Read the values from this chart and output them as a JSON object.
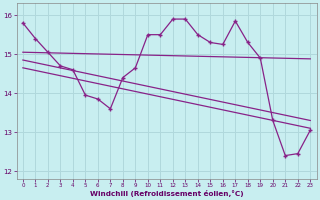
{
  "xlabel": "Windchill (Refroidissement éolien,°C)",
  "bg_color": "#c8eef0",
  "grid_color": "#b0d8dc",
  "line_color": "#882288",
  "x_hours": [
    0,
    1,
    2,
    3,
    4,
    5,
    6,
    7,
    8,
    9,
    10,
    11,
    12,
    13,
    14,
    15,
    16,
    17,
    18,
    19,
    20,
    21,
    22,
    23
  ],
  "y_windchill": [
    15.8,
    15.4,
    15.05,
    14.7,
    14.6,
    13.95,
    13.85,
    13.6,
    14.4,
    14.65,
    15.5,
    15.5,
    15.9,
    15.9,
    15.5,
    15.3,
    15.25,
    15.85,
    15.3,
    14.9,
    13.3,
    12.4,
    12.45,
    13.05
  ],
  "trend1_x": [
    0,
    23
  ],
  "trend1_y": [
    15.05,
    14.88
  ],
  "trend2_x": [
    0,
    23
  ],
  "trend2_y": [
    14.85,
    13.3
  ],
  "trend3_x": [
    0,
    23
  ],
  "trend3_y": [
    14.65,
    13.1
  ],
  "ylim": [
    11.8,
    16.3
  ],
  "xlim": [
    -0.5,
    23.5
  ],
  "yticks": [
    12,
    13,
    14,
    15,
    16
  ],
  "xticks": [
    0,
    1,
    2,
    3,
    4,
    5,
    6,
    7,
    8,
    9,
    10,
    11,
    12,
    13,
    14,
    15,
    16,
    17,
    18,
    19,
    20,
    21,
    22,
    23
  ]
}
